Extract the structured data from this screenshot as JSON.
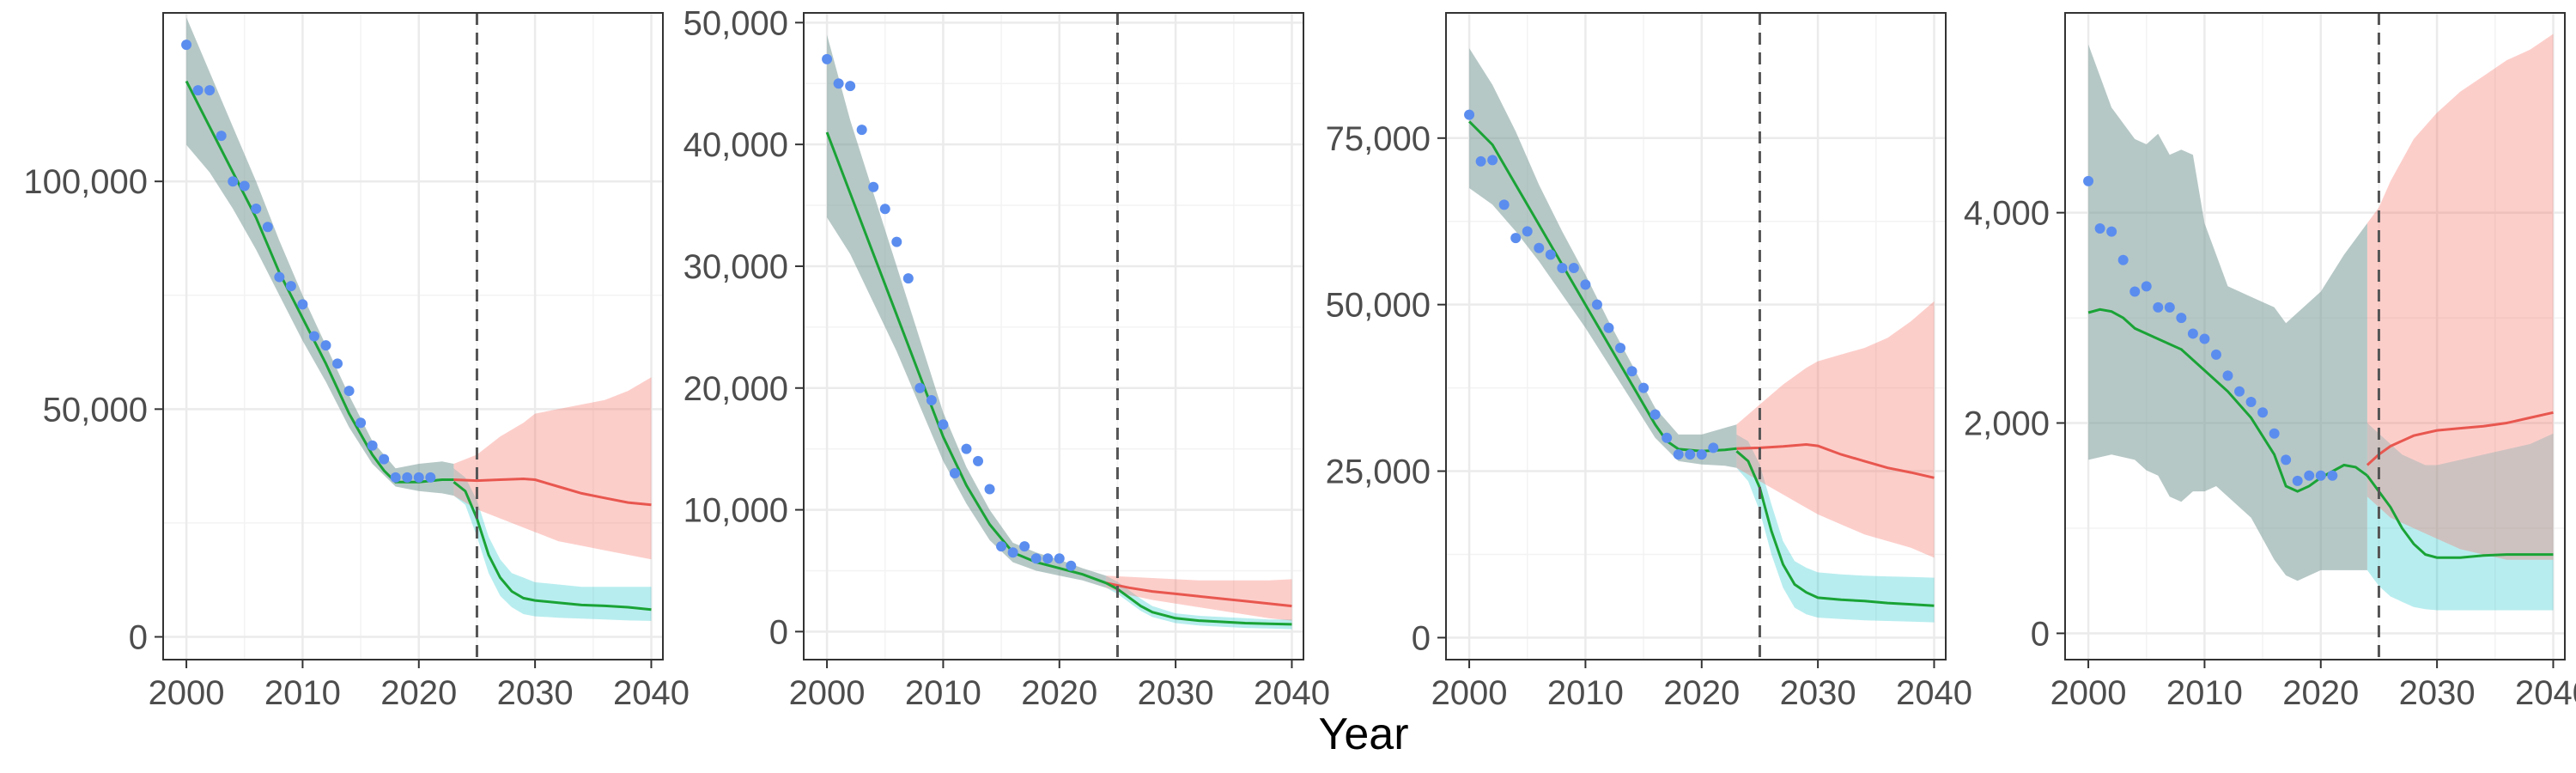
{
  "figure": {
    "xlabel": "Year",
    "vline_x": 2025,
    "colors": {
      "observed": "#5b8def",
      "fitted_line": "#1aa336",
      "scenario_high_line": "#e8574f",
      "scenario_high_band": "#f8766d",
      "scenario_low_band": "#00bfc4",
      "historical_band": "#7a9a98",
      "grid": "#ebebeb",
      "border": "#333333",
      "vline": "#555555"
    }
  },
  "chart_data": [
    {
      "type": "line",
      "xlim": [
        1998,
        2041
      ],
      "ylim": [
        -5000,
        137000
      ],
      "x_ticks": [
        2000,
        2010,
        2020,
        2030,
        2040
      ],
      "y_ticks": [
        0,
        50000,
        100000
      ],
      "x_tick_labels": [
        "2000",
        "2010",
        "2020",
        "2030",
        "2040"
      ],
      "y_tick_labels": [
        "0",
        "50,000",
        "100,000"
      ],
      "observed": {
        "x": [
          2000,
          2001,
          2002,
          2003,
          2004,
          2005,
          2006,
          2007,
          2008,
          2009,
          2010,
          2011,
          2012,
          2013,
          2014,
          2015,
          2016,
          2017,
          2018,
          2019,
          2020,
          2021
        ],
        "y": [
          130000,
          120000,
          120000,
          110000,
          100000,
          99000,
          94000,
          90000,
          79000,
          77000,
          73000,
          66000,
          64000,
          60000,
          54000,
          47000,
          42000,
          39000,
          35000,
          35000,
          35000,
          35000
        ]
      },
      "historical_line": {
        "x": [
          2000,
          2002,
          2004,
          2006,
          2008,
          2010,
          2012,
          2014,
          2016,
          2017,
          2018,
          2020,
          2022,
          2023
        ],
        "y": [
          122000,
          112000,
          102000,
          92000,
          80000,
          70000,
          60000,
          49000,
          40000,
          36500,
          34000,
          34000,
          34500,
          34500
        ]
      },
      "historical_band": {
        "x": [
          2000,
          2002,
          2004,
          2006,
          2008,
          2010,
          2012,
          2014,
          2016,
          2018,
          2020,
          2022,
          2023
        ],
        "lower": [
          108000,
          102000,
          94000,
          85000,
          75000,
          65000,
          56000,
          46000,
          38000,
          33000,
          32000,
          31500,
          31000
        ],
        "upper": [
          136000,
          124000,
          112000,
          100000,
          87000,
          75000,
          64000,
          53000,
          43000,
          37000,
          38000,
          38500,
          38000
        ]
      },
      "scenario_high": {
        "x": [
          2023,
          2025,
          2027,
          2029,
          2030,
          2032,
          2034,
          2036,
          2038,
          2040
        ],
        "y": [
          34500,
          34300,
          34500,
          34700,
          34500,
          33000,
          31500,
          30500,
          29500,
          29000
        ],
        "lower": [
          31000,
          28000,
          26000,
          24000,
          23000,
          21000,
          20000,
          19000,
          18000,
          17000
        ],
        "upper": [
          38000,
          40000,
          44000,
          47000,
          49000,
          50000,
          51000,
          52000,
          54000,
          57000
        ]
      },
      "scenario_low": {
        "x": [
          2023,
          2024,
          2025,
          2026,
          2027,
          2028,
          2029,
          2030,
          2032,
          2034,
          2036,
          2038,
          2040
        ],
        "y": [
          34000,
          32000,
          26000,
          18000,
          13000,
          10000,
          8500,
          8000,
          7500,
          7000,
          6800,
          6500,
          6000
        ],
        "lower": [
          31000,
          29000,
          22000,
          14000,
          9000,
          6500,
          5000,
          4500,
          4200,
          4000,
          3800,
          3600,
          3500
        ],
        "upper": [
          37000,
          35000,
          30000,
          22000,
          17000,
          14000,
          13000,
          12000,
          11500,
          11000,
          11000,
          11000,
          11000
        ]
      }
    },
    {
      "type": "line",
      "xlim": [
        1998,
        2041
      ],
      "ylim": [
        -2300,
        50800
      ],
      "x_ticks": [
        2000,
        2010,
        2020,
        2030,
        2040
      ],
      "y_ticks": [
        0,
        10000,
        20000,
        30000,
        40000,
        50000
      ],
      "x_tick_labels": [
        "2000",
        "2010",
        "2020",
        "2030",
        "2040"
      ],
      "y_tick_labels": [
        "0",
        "10,000",
        "20,000",
        "30,000",
        "40,000",
        "50,000"
      ],
      "observed": {
        "x": [
          2000,
          2001,
          2002,
          2003,
          2004,
          2005,
          2006,
          2007,
          2008,
          2009,
          2010,
          2011,
          2012,
          2013,
          2014,
          2015,
          2016,
          2017,
          2018,
          2019,
          2020,
          2021
        ],
        "y": [
          47000,
          45000,
          44800,
          41200,
          36500,
          34700,
          32000,
          29000,
          20000,
          19000,
          17000,
          13000,
          15000,
          14000,
          11700,
          7000,
          6500,
          7000,
          6000,
          6000,
          6000,
          5400
        ]
      },
      "historical_line": {
        "x": [
          2000,
          2002,
          2004,
          2006,
          2008,
          2010,
          2012,
          2014,
          2016,
          2018,
          2020,
          2022,
          2024
        ],
        "y": [
          41000,
          36000,
          31000,
          26000,
          21000,
          16000,
          12000,
          8800,
          6500,
          5700,
          5200,
          4700,
          4000
        ]
      },
      "historical_band": {
        "x": [
          2000,
          2002,
          2004,
          2006,
          2008,
          2010,
          2012,
          2014,
          2016,
          2018,
          2020,
          2022,
          2024
        ],
        "lower": [
          34000,
          31000,
          27000,
          23000,
          18500,
          14000,
          10500,
          7500,
          5700,
          5000,
          4600,
          4200,
          3600
        ],
        "upper": [
          49000,
          42000,
          36000,
          30000,
          24000,
          18000,
          13500,
          10000,
          7300,
          6500,
          5900,
          5200,
          4600
        ]
      },
      "scenario_high": {
        "x": [
          2024,
          2026,
          2028,
          2030,
          2032,
          2034,
          2036,
          2038,
          2040
        ],
        "y": [
          4000,
          3600,
          3300,
          3100,
          2900,
          2700,
          2500,
          2300,
          2100
        ],
        "lower": [
          3600,
          3000,
          2600,
          2300,
          2000,
          1700,
          1400,
          1100,
          900
        ],
        "upper": [
          4600,
          4500,
          4400,
          4300,
          4200,
          4200,
          4200,
          4200,
          4300
        ]
      },
      "scenario_low": {
        "x": [
          2024,
          2025,
          2026,
          2027,
          2028,
          2030,
          2032,
          2034,
          2036,
          2038,
          2040
        ],
        "y": [
          4000,
          3500,
          2800,
          2100,
          1600,
          1100,
          900,
          800,
          700,
          650,
          600
        ],
        "lower": [
          3600,
          3100,
          2400,
          1700,
          1200,
          700,
          500,
          400,
          300,
          250,
          200
        ],
        "upper": [
          4600,
          4100,
          3400,
          2700,
          2100,
          1500,
          1300,
          1200,
          1100,
          1000,
          1000
        ]
      }
    },
    {
      "type": "line",
      "xlim": [
        1998,
        2041
      ],
      "ylim": [
        -3300,
        93800
      ],
      "x_ticks": [
        2000,
        2010,
        2020,
        2030,
        2040
      ],
      "y_ticks": [
        0,
        25000,
        50000,
        75000
      ],
      "x_tick_labels": [
        "2000",
        "2010",
        "2020",
        "2030",
        "2040"
      ],
      "y_tick_labels": [
        "0",
        "25,000",
        "50,000",
        "75,000"
      ],
      "observed": {
        "x": [
          2000,
          2001,
          2002,
          2003,
          2004,
          2005,
          2006,
          2007,
          2008,
          2009,
          2010,
          2011,
          2012,
          2013,
          2014,
          2015,
          2016,
          2017,
          2018,
          2019,
          2020,
          2021
        ],
        "y": [
          78500,
          71500,
          71700,
          65000,
          60000,
          61000,
          58500,
          57500,
          55500,
          55500,
          53000,
          50000,
          46500,
          43500,
          40000,
          37500,
          33500,
          30000,
          27500,
          27500,
          27500,
          28500
        ]
      },
      "historical_line": {
        "x": [
          2000,
          2002,
          2004,
          2006,
          2008,
          2010,
          2012,
          2014,
          2016,
          2017,
          2018,
          2020,
          2022,
          2023
        ],
        "y": [
          77500,
          74000,
          68000,
          62000,
          56000,
          50000,
          44000,
          38000,
          32000,
          29500,
          28300,
          28000,
          28200,
          28400
        ]
      },
      "historical_band": {
        "x": [
          2000,
          2002,
          2004,
          2006,
          2008,
          2010,
          2012,
          2014,
          2016,
          2018,
          2020,
          2022,
          2023
        ],
        "lower": [
          67500,
          65000,
          61000,
          56500,
          51500,
          46500,
          41000,
          35500,
          30000,
          26500,
          26000,
          25800,
          25500
        ],
        "upper": [
          88500,
          83000,
          76000,
          68000,
          61000,
          54500,
          47500,
          41000,
          34500,
          30500,
          30500,
          31500,
          32000
        ]
      },
      "scenario_high": {
        "x": [
          2023,
          2025,
          2027,
          2029,
          2030,
          2032,
          2034,
          2036,
          2038,
          2040
        ],
        "y": [
          28400,
          28500,
          28700,
          29000,
          28800,
          27500,
          26500,
          25500,
          24800,
          24000
        ],
        "lower": [
          25500,
          23500,
          21500,
          19500,
          18500,
          17000,
          15500,
          14500,
          13500,
          12000
        ],
        "upper": [
          32000,
          35000,
          38000,
          40500,
          41500,
          42500,
          43500,
          45000,
          47500,
          50500
        ]
      },
      "scenario_low": {
        "x": [
          2023,
          2024,
          2025,
          2026,
          2027,
          2028,
          2029,
          2030,
          2032,
          2034,
          2036,
          2038,
          2040
        ],
        "y": [
          28000,
          26500,
          22500,
          16000,
          11000,
          8000,
          6800,
          6000,
          5700,
          5500,
          5200,
          5000,
          4800
        ],
        "lower": [
          25500,
          23500,
          19000,
          12500,
          7500,
          4500,
          3500,
          3000,
          2800,
          2600,
          2500,
          2400,
          2300
        ],
        "upper": [
          30500,
          29500,
          26000,
          20000,
          14500,
          11500,
          10500,
          9800,
          9500,
          9300,
          9200,
          9100,
          9000
        ]
      }
    },
    {
      "type": "line",
      "xlim": [
        1998,
        2041
      ],
      "ylim": [
        -250,
        5900
      ],
      "x_ticks": [
        2000,
        2010,
        2020,
        2030,
        2040
      ],
      "y_ticks": [
        0,
        2000,
        4000
      ],
      "x_tick_labels": [
        "2000",
        "2010",
        "2020",
        "2030",
        "2040"
      ],
      "y_tick_labels": [
        "0",
        "2,000",
        "4,000"
      ],
      "observed": {
        "x": [
          2000,
          2001,
          2002,
          2003,
          2004,
          2005,
          2006,
          2007,
          2008,
          2009,
          2010,
          2011,
          2012,
          2013,
          2014,
          2015,
          2016,
          2017,
          2018,
          2019,
          2020,
          2021
        ],
        "y": [
          4300,
          3850,
          3820,
          3550,
          3250,
          3300,
          3100,
          3100,
          3000,
          2850,
          2800,
          2650,
          2450,
          2300,
          2200,
          2100,
          1900,
          1650,
          1450,
          1500,
          1500,
          1500
        ]
      },
      "historical_line": {
        "x": [
          2000,
          2001,
          2002,
          2003,
          2004,
          2006,
          2008,
          2010,
          2012,
          2014,
          2016,
          2017,
          2018,
          2019,
          2020,
          2022,
          2023,
          2024
        ],
        "y": [
          3050,
          3080,
          3060,
          3000,
          2900,
          2800,
          2700,
          2500,
          2300,
          2050,
          1700,
          1400,
          1350,
          1400,
          1480,
          1600,
          1580,
          1500
        ]
      },
      "historical_band": {
        "x": [
          2000,
          2002,
          2004,
          2005,
          2006,
          2007,
          2008,
          2009,
          2010,
          2011,
          2012,
          2014,
          2016,
          2017,
          2018,
          2020,
          2022,
          2024
        ],
        "lower": [
          1650,
          1700,
          1650,
          1550,
          1500,
          1300,
          1250,
          1350,
          1350,
          1400,
          1300,
          1100,
          700,
          550,
          500,
          600,
          600,
          600
        ],
        "upper": [
          5600,
          5000,
          4700,
          4650,
          4750,
          4550,
          4600,
          4550,
          3900,
          3600,
          3300,
          3200,
          3100,
          2950,
          3050,
          3250,
          3600,
          3900
        ]
      },
      "scenario_high": {
        "x": [
          2024,
          2025,
          2026,
          2028,
          2030,
          2032,
          2034,
          2036,
          2038,
          2040
        ],
        "y": [
          1600,
          1700,
          1780,
          1880,
          1930,
          1950,
          1970,
          2000,
          2050,
          2100
        ],
        "lower": [
          1300,
          1200,
          1100,
          1000,
          900,
          800,
          750,
          700,
          700,
          700
        ],
        "upper": [
          3900,
          4050,
          4300,
          4700,
          4950,
          5150,
          5300,
          5450,
          5550,
          5700
        ]
      },
      "scenario_low": {
        "x": [
          2024,
          2025,
          2026,
          2027,
          2028,
          2029,
          2030,
          2032,
          2034,
          2036,
          2038,
          2040
        ],
        "y": [
          1500,
          1350,
          1200,
          1000,
          850,
          750,
          720,
          720,
          740,
          750,
          750,
          750
        ],
        "lower": [
          600,
          450,
          350,
          300,
          250,
          230,
          220,
          220,
          220,
          220,
          220,
          220
        ],
        "upper": [
          2000,
          1900,
          1800,
          1700,
          1650,
          1600,
          1600,
          1650,
          1700,
          1750,
          1800,
          1900
        ]
      }
    }
  ]
}
